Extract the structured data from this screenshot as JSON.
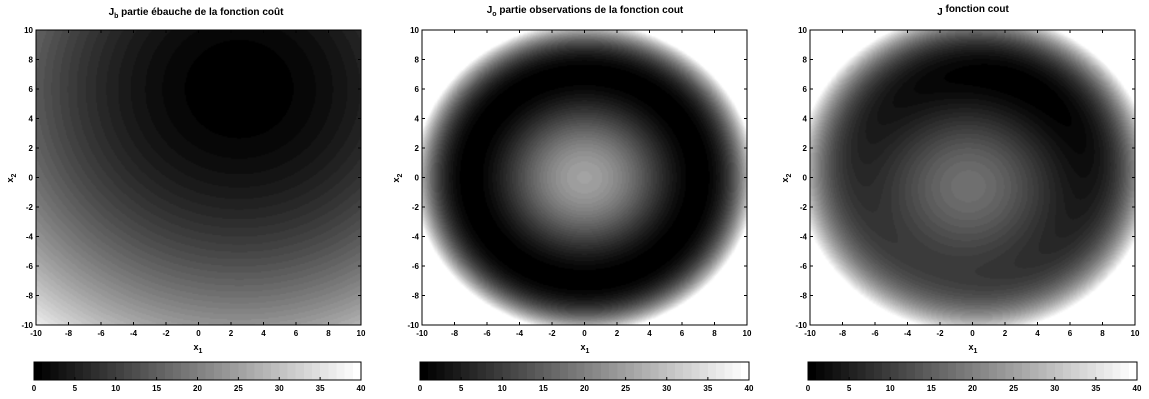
{
  "chart_data": [
    {
      "type": "heatmap",
      "title_main": "J",
      "title_sub": "b",
      "title_rest": " partie ébauche de la fonction coût",
      "xlabel_main": "x",
      "xlabel_sub": "1",
      "ylabel_main": "x",
      "ylabel_sub": "2",
      "xlim": [
        -10,
        10
      ],
      "ylim": [
        -10,
        10
      ],
      "xticks": [
        -10,
        -8,
        -6,
        -4,
        -2,
        0,
        2,
        4,
        6,
        8,
        10
      ],
      "yticks": [
        -10,
        -8,
        -6,
        -4,
        -2,
        0,
        2,
        4,
        6,
        8,
        10
      ],
      "colorbar_range": [
        0,
        40
      ],
      "colorbar_ticks": [
        0,
        5,
        10,
        15,
        20,
        25,
        30,
        35,
        40
      ],
      "levels": 40,
      "colormap": "gray",
      "field": "background",
      "background_center": [
        2.5,
        6
      ]
    },
    {
      "type": "heatmap",
      "title_main": "J",
      "title_sub": "o",
      "title_rest": " partie observations de la fonction cout",
      "xlabel_main": "x",
      "xlabel_sub": "1",
      "ylabel_main": "x",
      "ylabel_sub": "2",
      "xlim": [
        -10,
        10
      ],
      "ylim": [
        -10,
        10
      ],
      "xticks": [
        -10,
        -8,
        -6,
        -4,
        -2,
        0,
        2,
        4,
        6,
        8,
        10
      ],
      "yticks": [
        -10,
        -8,
        -6,
        -4,
        -2,
        0,
        2,
        4,
        6,
        8,
        10
      ],
      "colorbar_range": [
        0,
        40
      ],
      "colorbar_ticks": [
        0,
        5,
        10,
        15,
        20,
        25,
        30,
        35,
        40
      ],
      "levels": 40,
      "colormap": "gray",
      "field": "observations",
      "observation_ring_radius": 7
    },
    {
      "type": "heatmap",
      "title_main": "J",
      "title_sub": "",
      "title_rest": " fonction cout",
      "xlabel_main": "x",
      "xlabel_sub": "1",
      "ylabel_main": "x",
      "ylabel_sub": "2",
      "xlim": [
        -10,
        10
      ],
      "ylim": [
        -10,
        10
      ],
      "xticks": [
        -10,
        -8,
        -6,
        -4,
        -2,
        0,
        2,
        4,
        6,
        8,
        10
      ],
      "yticks": [
        -10,
        -8,
        -6,
        -4,
        -2,
        0,
        2,
        4,
        6,
        8,
        10
      ],
      "colorbar_range": [
        0,
        40
      ],
      "colorbar_ticks": [
        0,
        5,
        10,
        15,
        20,
        25,
        30,
        35,
        40
      ],
      "levels": 40,
      "colormap": "gray",
      "field": "total"
    }
  ]
}
